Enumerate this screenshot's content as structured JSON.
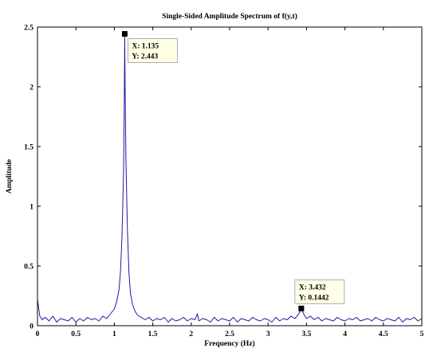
{
  "chart_data": {
    "type": "line",
    "title": "Single-Sided Amplitude Spectrum of f(y,t)",
    "xlabel": "Frequency (Hz)",
    "ylabel": "Amplitude",
    "xlim": [
      0,
      5
    ],
    "ylim": [
      0,
      2.5
    ],
    "xticks": [
      "0",
      "0.5",
      "1",
      "1.5",
      "2",
      "2.5",
      "3",
      "3.5",
      "4",
      "4.5",
      "5"
    ],
    "yticks": [
      "0",
      "0.5",
      "1",
      "1.5",
      "2",
      "2.5"
    ],
    "grid": false,
    "series": [
      {
        "color": "#1a1aa8",
        "x": [
          0,
          0.03,
          0.06,
          0.1,
          0.15,
          0.2,
          0.25,
          0.3,
          0.35,
          0.4,
          0.45,
          0.5,
          0.55,
          0.6,
          0.65,
          0.7,
          0.75,
          0.8,
          0.85,
          0.9,
          0.95,
          1.0,
          1.03,
          1.06,
          1.08,
          1.1,
          1.12,
          1.13,
          1.135,
          1.14,
          1.15,
          1.17,
          1.19,
          1.21,
          1.24,
          1.27,
          1.3,
          1.35,
          1.4,
          1.45,
          1.5,
          1.55,
          1.6,
          1.65,
          1.7,
          1.75,
          1.8,
          1.85,
          1.9,
          1.95,
          2.0,
          2.05,
          2.08,
          2.1,
          2.15,
          2.2,
          2.25,
          2.3,
          2.35,
          2.4,
          2.45,
          2.5,
          2.55,
          2.6,
          2.65,
          2.7,
          2.75,
          2.8,
          2.85,
          2.9,
          2.95,
          3.0,
          3.05,
          3.1,
          3.15,
          3.2,
          3.25,
          3.3,
          3.35,
          3.4,
          3.432,
          3.47,
          3.5,
          3.55,
          3.6,
          3.65,
          3.7,
          3.75,
          3.8,
          3.85,
          3.9,
          3.95,
          4.0,
          4.05,
          4.1,
          4.15,
          4.2,
          4.25,
          4.3,
          4.35,
          4.4,
          4.45,
          4.5,
          4.55,
          4.6,
          4.65,
          4.7,
          4.75,
          4.8,
          4.85,
          4.9,
          4.95,
          5.0
        ],
        "y": [
          0.22,
          0.08,
          0.05,
          0.07,
          0.04,
          0.08,
          0.03,
          0.06,
          0.05,
          0.04,
          0.07,
          0.03,
          0.06,
          0.04,
          0.07,
          0.05,
          0.06,
          0.04,
          0.08,
          0.06,
          0.1,
          0.14,
          0.2,
          0.3,
          0.45,
          0.75,
          1.3,
          1.9,
          2.443,
          2.0,
          1.4,
          0.8,
          0.45,
          0.27,
          0.17,
          0.12,
          0.09,
          0.07,
          0.05,
          0.07,
          0.04,
          0.06,
          0.05,
          0.07,
          0.03,
          0.06,
          0.04,
          0.05,
          0.07,
          0.04,
          0.06,
          0.05,
          0.1,
          0.04,
          0.06,
          0.05,
          0.03,
          0.07,
          0.04,
          0.06,
          0.05,
          0.04,
          0.07,
          0.03,
          0.06,
          0.05,
          0.04,
          0.07,
          0.05,
          0.04,
          0.06,
          0.05,
          0.03,
          0.07,
          0.04,
          0.06,
          0.05,
          0.08,
          0.06,
          0.1,
          0.1442,
          0.09,
          0.06,
          0.08,
          0.05,
          0.07,
          0.04,
          0.06,
          0.05,
          0.04,
          0.07,
          0.05,
          0.04,
          0.06,
          0.05,
          0.07,
          0.04,
          0.05,
          0.06,
          0.04,
          0.07,
          0.05,
          0.04,
          0.06,
          0.05,
          0.04,
          0.07,
          0.03,
          0.06,
          0.05,
          0.07,
          0.04,
          0.06
        ]
      }
    ],
    "datatips": [
      {
        "x": 1.135,
        "y": 2.443,
        "x_text": "X: 1.135",
        "y_text": "Y: 2.443",
        "box_side": "right-below"
      },
      {
        "x": 3.432,
        "y": 0.1442,
        "x_text": "X: 3.432",
        "y_text": "Y: 0.1442",
        "box_side": "above"
      }
    ]
  }
}
